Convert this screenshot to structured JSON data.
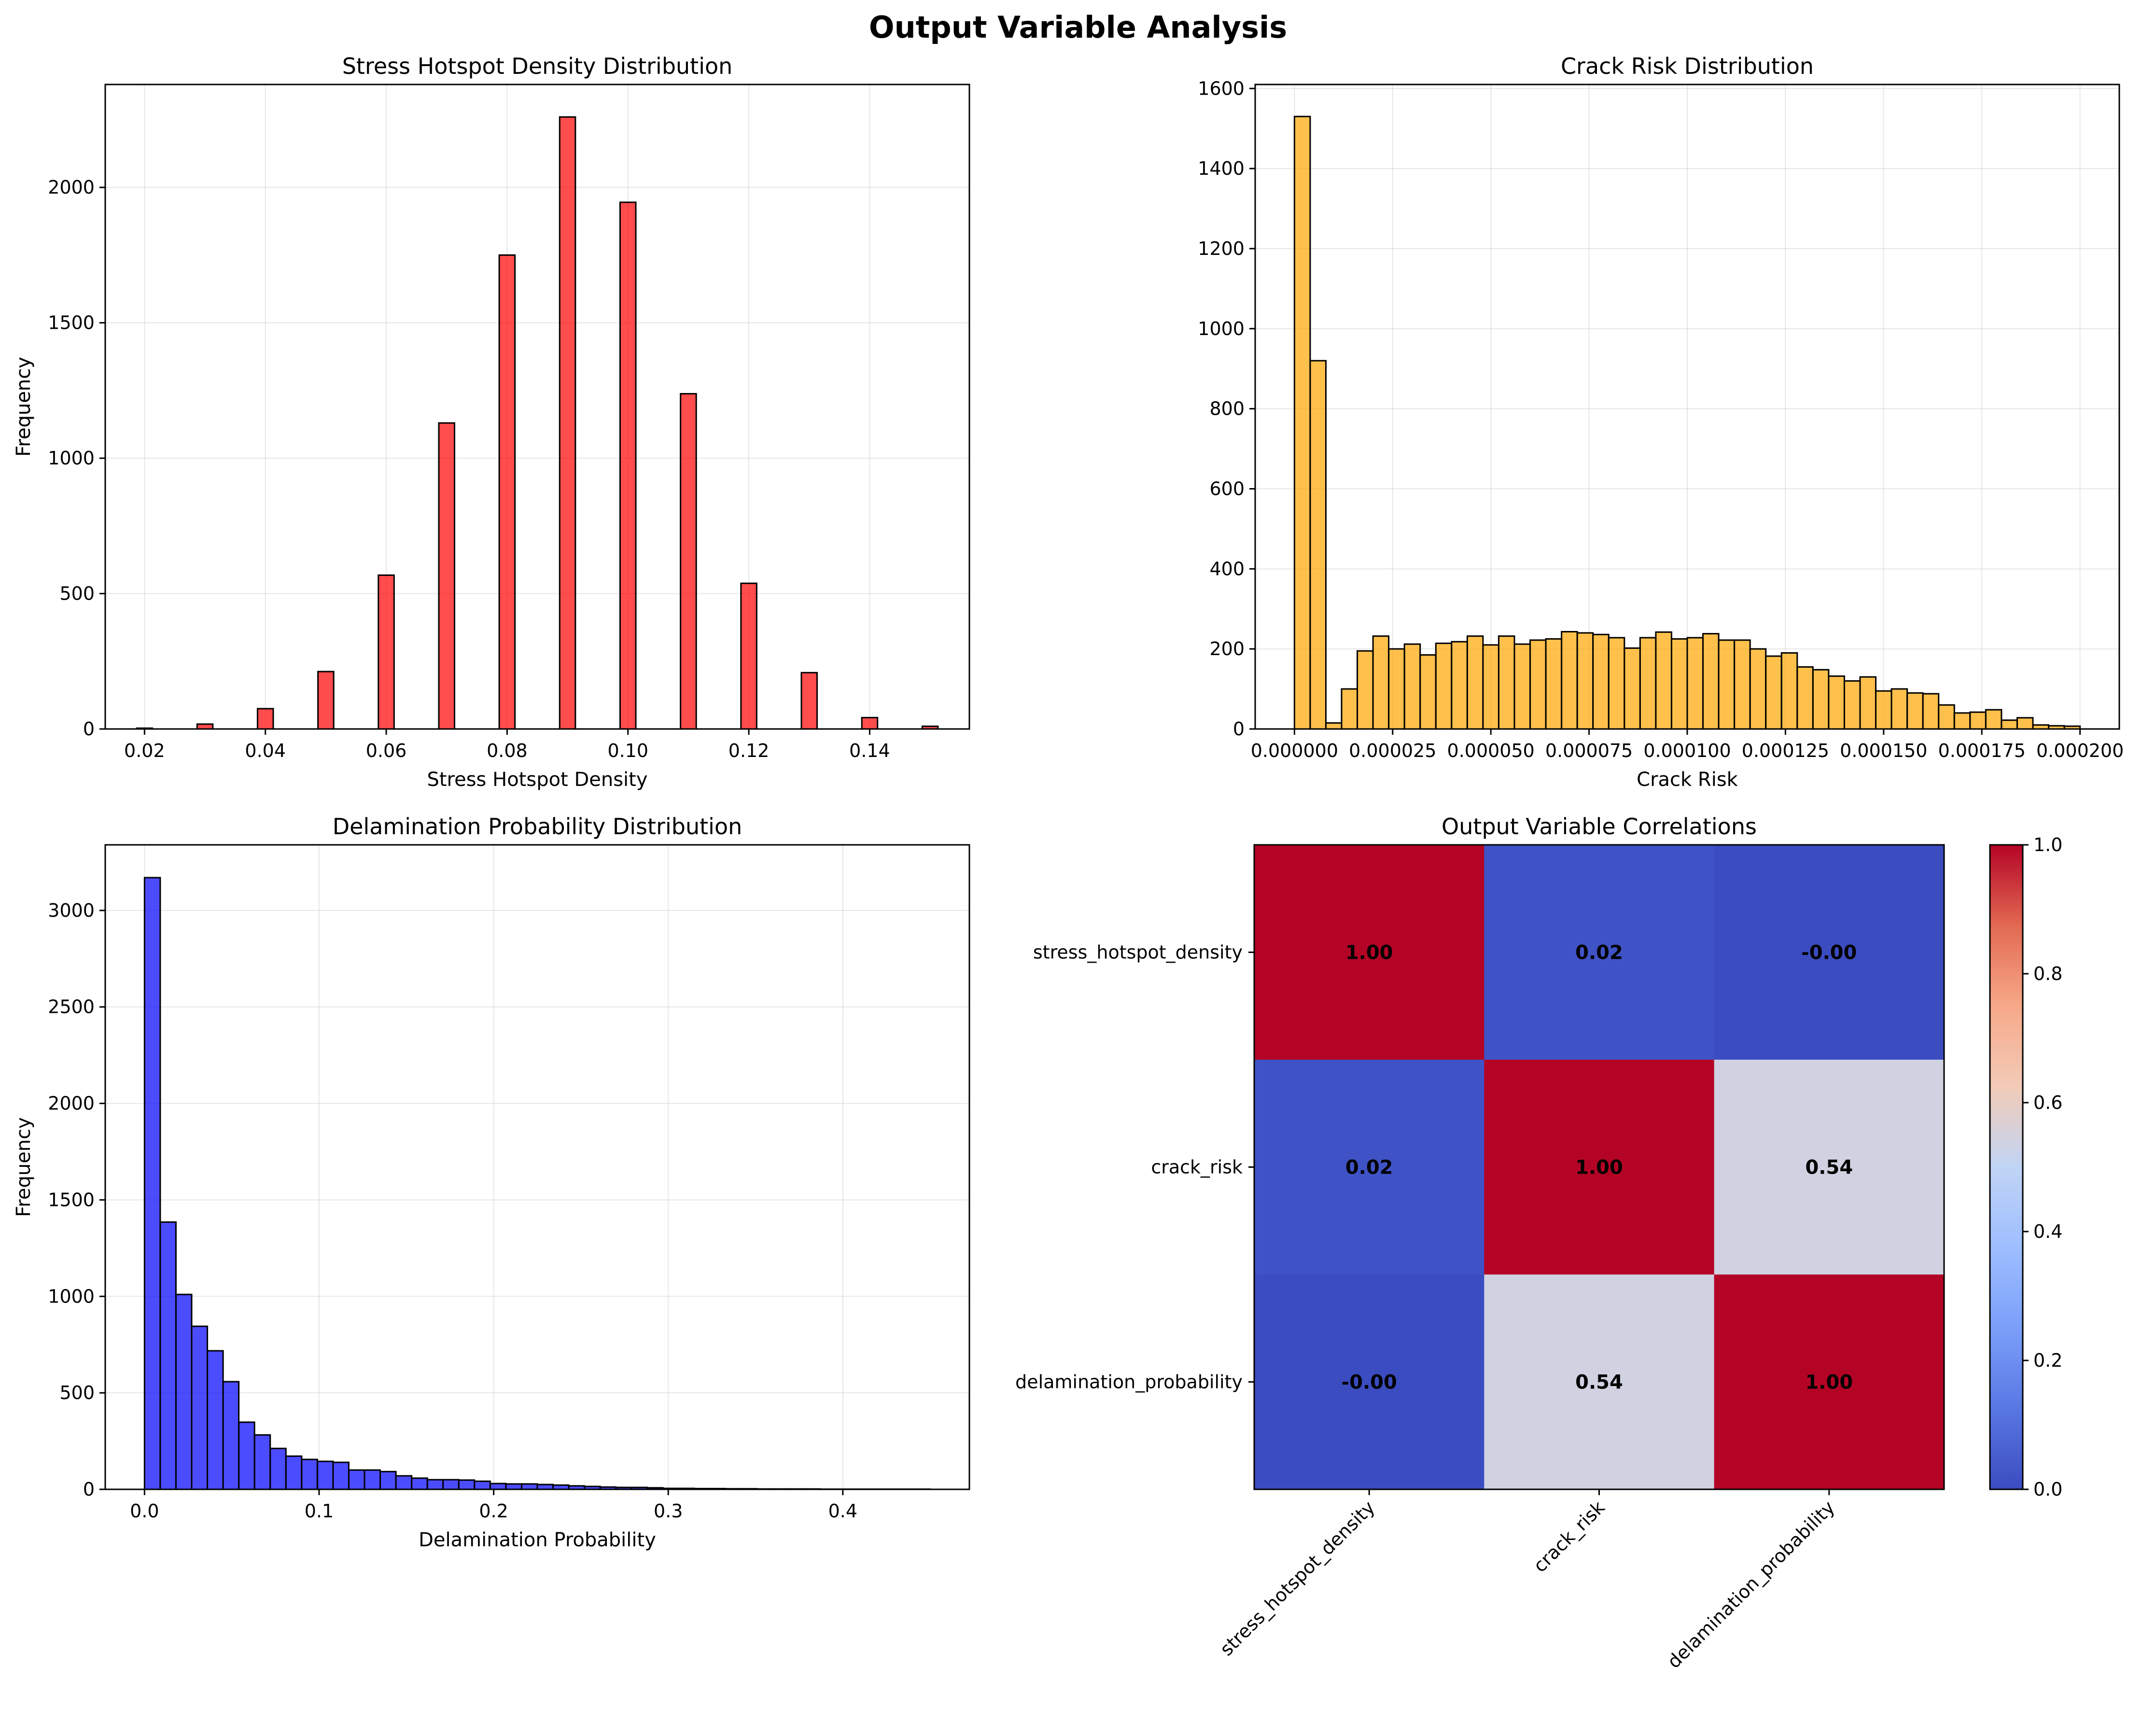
{
  "figure": {
    "title": "Output Variable Analysis"
  },
  "chart_data": [
    {
      "type": "bar",
      "title": "Stress Hotspot Density Distribution",
      "xlabel": "Stress Hotspot Density",
      "ylabel": "Frequency",
      "color": "#ff0000",
      "xlim": [
        0.0135,
        0.1565
      ],
      "ylim": [
        0,
        2380
      ],
      "xticks": [
        0.02,
        0.04,
        0.06,
        0.08,
        0.1,
        0.12,
        0.14
      ],
      "xticklabels": [
        "0.02",
        "0.04",
        "0.06",
        "0.08",
        "0.10",
        "0.12",
        "0.14"
      ],
      "yticks": [
        0,
        500,
        1000,
        1500,
        2000
      ],
      "yticklabels": [
        "0",
        "500",
        "1000",
        "1500",
        "2000"
      ],
      "bin_width": 0.0026,
      "bins": [
        {
          "x": 0.02,
          "value": 3
        },
        {
          "x": 0.03,
          "value": 18
        },
        {
          "x": 0.04,
          "value": 75
        },
        {
          "x": 0.05,
          "value": 212
        },
        {
          "x": 0.06,
          "value": 568
        },
        {
          "x": 0.07,
          "value": 1130
        },
        {
          "x": 0.08,
          "value": 1750
        },
        {
          "x": 0.09,
          "value": 2260
        },
        {
          "x": 0.1,
          "value": 1945
        },
        {
          "x": 0.11,
          "value": 1238
        },
        {
          "x": 0.12,
          "value": 538
        },
        {
          "x": 0.13,
          "value": 208
        },
        {
          "x": 0.14,
          "value": 42
        },
        {
          "x": 0.15,
          "value": 10
        }
      ]
    },
    {
      "type": "bar",
      "title": "Crack Risk Distribution",
      "xlabel": "Crack Risk",
      "ylabel": "Frequency",
      "color": "#ffa500",
      "xlim": [
        -1e-05,
        0.00021
      ],
      "ylim": [
        0,
        1610
      ],
      "xticks": [
        0,
        2.5e-05,
        5e-05,
        7.5e-05,
        0.0001,
        0.000125,
        0.00015,
        0.000175,
        0.0002
      ],
      "xticklabels": [
        "0.000000",
        "0.000025",
        "0.000050",
        "0.000075",
        "0.000100",
        "0.000125",
        "0.000150",
        "0.000175",
        "0.000200"
      ],
      "yticks": [
        0,
        200,
        400,
        600,
        800,
        1000,
        1200,
        1400,
        1600
      ],
      "yticklabels": [
        "0",
        "200",
        "400",
        "600",
        "800",
        "1000",
        "1200",
        "1400",
        "1600"
      ],
      "bin_start": 0,
      "bin_width": 4e-06,
      "values": [
        1530,
        920,
        15,
        100,
        195,
        232,
        200,
        212,
        185,
        214,
        218,
        232,
        210,
        232,
        212,
        222,
        225,
        243,
        240,
        236,
        228,
        202,
        228,
        242,
        225,
        228,
        238,
        222,
        222,
        200,
        182,
        190,
        155,
        148,
        132,
        120,
        130,
        95,
        100,
        90,
        88,
        60,
        40,
        42,
        48,
        22,
        28,
        10,
        8,
        7
      ]
    },
    {
      "type": "bar",
      "title": "Delamination Probability Distribution",
      "xlabel": "Delamination Probability",
      "ylabel": "Frequency",
      "color": "#0000ff",
      "xlim": [
        -0.0225,
        0.4725
      ],
      "ylim": [
        0,
        3340
      ],
      "xticks": [
        0.0,
        0.1,
        0.2,
        0.3,
        0.4
      ],
      "xticklabels": [
        "0.0",
        "0.1",
        "0.2",
        "0.3",
        "0.4"
      ],
      "yticks": [
        0,
        500,
        1000,
        1500,
        2000,
        2500,
        3000
      ],
      "yticklabels": [
        "0",
        "500",
        "1000",
        "1500",
        "2000",
        "2500",
        "3000"
      ],
      "bin_start": 0,
      "bin_width": 0.009,
      "values": [
        3170,
        1385,
        1010,
        845,
        718,
        558,
        348,
        282,
        212,
        172,
        155,
        145,
        140,
        100,
        100,
        92,
        70,
        58,
        50,
        50,
        48,
        42,
        30,
        28,
        28,
        25,
        22,
        18,
        15,
        12,
        10,
        10,
        8,
        5,
        5,
        4,
        4,
        3,
        3,
        2,
        2,
        2,
        2,
        1,
        1,
        1,
        1,
        1,
        1,
        1
      ]
    },
    {
      "type": "heatmap",
      "title": "Output Variable Correlations",
      "colormap": "coolwarm",
      "vmin": 0,
      "vmax": 1,
      "labels": [
        "stress_hotspot_density",
        "crack_risk",
        "delamination_probability"
      ],
      "matrix": [
        [
          1.0,
          0.02,
          -0.0
        ],
        [
          0.02,
          1.0,
          0.54
        ],
        [
          -0.0,
          0.54,
          1.0
        ]
      ],
      "cell_labels": [
        [
          "1.00",
          "0.02",
          "-0.00"
        ],
        [
          "0.02",
          "1.00",
          "0.54"
        ],
        [
          "-0.00",
          "0.54",
          "1.00"
        ]
      ],
      "colorbar_ticks": [
        0.0,
        0.2,
        0.4,
        0.6,
        0.8,
        1.0
      ],
      "colorbar_ticklabels": [
        "0.0",
        "0.2",
        "0.4",
        "0.6",
        "0.8",
        "1.0"
      ]
    }
  ]
}
